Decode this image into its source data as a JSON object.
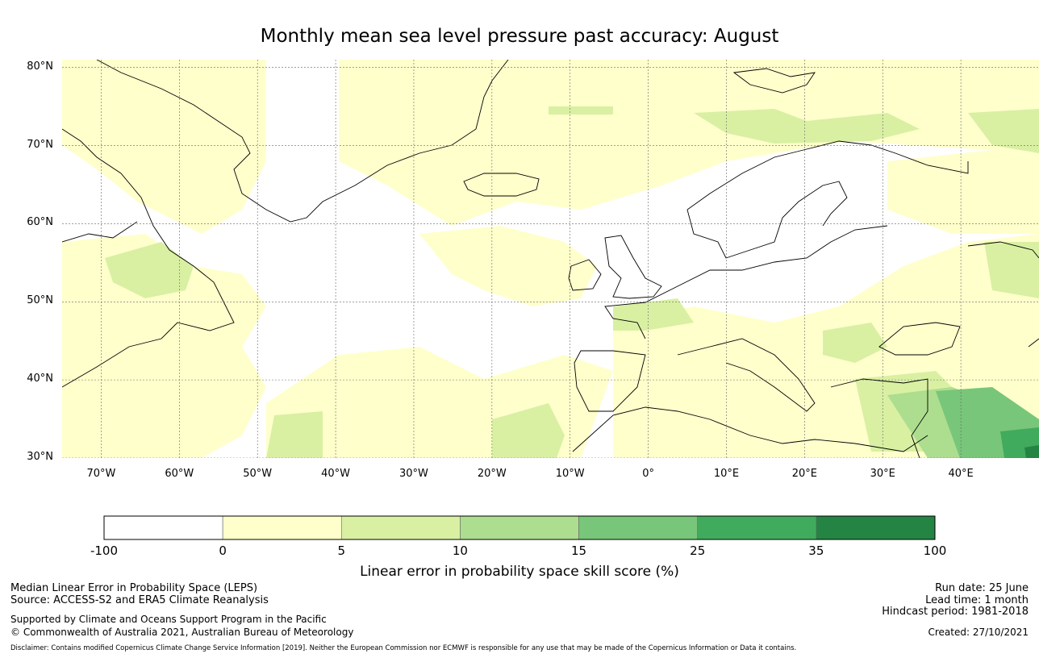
{
  "title": "Monthly mean sea level pressure past accuracy: August",
  "map": {
    "lat_labels": [
      "80°N",
      "70°N",
      "60°N",
      "50°N",
      "40°N",
      "30°N"
    ],
    "lon_labels": [
      "70°W",
      "60°W",
      "50°W",
      "40°W",
      "30°W",
      "20°W",
      "10°W",
      "0°",
      "10°E",
      "20°E",
      "30°E",
      "40°E"
    ],
    "extent": {
      "lon_min": -75,
      "lon_max": 50,
      "lat_min": 30,
      "lat_max": 81
    },
    "land_color": "#ffffff",
    "coast_color": "#000000"
  },
  "legend": {
    "ticks": [
      "-100",
      "0",
      "5",
      "10",
      "15",
      "25",
      "35",
      "100"
    ],
    "colors": [
      "#ffffff",
      "#ffffcc",
      "#d9f0a3",
      "#addd8e",
      "#78c679",
      "#41ab5d",
      "#238443"
    ],
    "title": "Linear error in probability space skill score (%)"
  },
  "footer": {
    "left_line1": "Median Linear Error in Probability Space (LEPS)",
    "left_line2": "Source: ACCESS-S2 and ERA5 Climate Reanalysis",
    "left_line3": "Supported by Climate and Oceans Support Program in the Pacific",
    "left_line4": "© Commonwealth of Australia 2021, Australian Bureau of Meteorology",
    "right_line1": "Run date: 25 June",
    "right_line2": "Lead time: 1 month",
    "right_line3": "Hindcast period: 1981-2018",
    "right_line4": "Created: 27/10/2021",
    "disclaimer": "Disclaimer: Contains modified Copernicus Climate Change Service Information [2019]. Neither the European Commission nor ECMWF is responsible for any use that may be made of the Copernicus Information or Data it contains."
  }
}
